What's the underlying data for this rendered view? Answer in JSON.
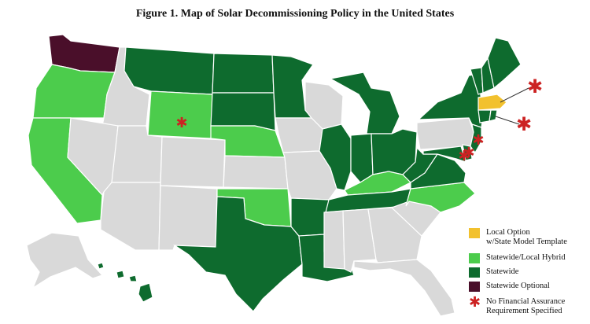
{
  "title": "Figure 1. Map of Solar Decommissioning Policy in the United States",
  "colors": {
    "local_option": "#f2c12e",
    "hybrid": "#4ccc4c",
    "statewide": "#0e6b2e",
    "optional": "#4a0f2a",
    "none": "#d9d9d9",
    "asterisk": "#cc2222"
  },
  "legend": [
    {
      "key": "local_option",
      "label": "Local Option\nw/State Model Template"
    },
    {
      "key": "hybrid",
      "label": "Statewide/Local Hybrid"
    },
    {
      "key": "statewide",
      "label": "Statewide"
    },
    {
      "key": "optional",
      "label": "Statewide Optional"
    },
    {
      "key": "asterisk",
      "label": "No Financial Assurance\nRequirement Specified",
      "icon": "asterisk-icon"
    }
  ],
  "states": {
    "WA": "optional",
    "OR": "hybrid",
    "CA": "hybrid",
    "WY": "hybrid",
    "NE": "hybrid",
    "OK": "hybrid",
    "KY": "hybrid",
    "NC": "hybrid",
    "MA": "local_option",
    "MT": "statewide",
    "ND": "statewide",
    "SD": "statewide",
    "MN": "statewide",
    "MI": "statewide",
    "IL": "statewide",
    "IN": "statewide",
    "OH": "statewide",
    "WV": "statewide",
    "VA": "statewide",
    "MD": "statewide",
    "DE": "statewide",
    "NJ": "statewide",
    "NY": "statewide",
    "VT": "statewide",
    "NH": "statewide",
    "ME": "statewide",
    "CT": "statewide",
    "RI": "statewide",
    "TN": "statewide",
    "AR": "statewide",
    "LA": "statewide",
    "TX": "statewide",
    "HI": "statewide",
    "ID": "none",
    "NV": "none",
    "UT": "none",
    "AZ": "none",
    "CO": "none",
    "NM": "none",
    "KS": "none",
    "MO": "none",
    "IA": "none",
    "WI": "none",
    "PA": "none",
    "MS": "none",
    "AL": "none",
    "GA": "none",
    "SC": "none",
    "FL": "none",
    "AK": "none"
  },
  "no_financial_assurance_states": [
    "WY",
    "NJ",
    "DE",
    "MD",
    "MA",
    "RI"
  ]
}
